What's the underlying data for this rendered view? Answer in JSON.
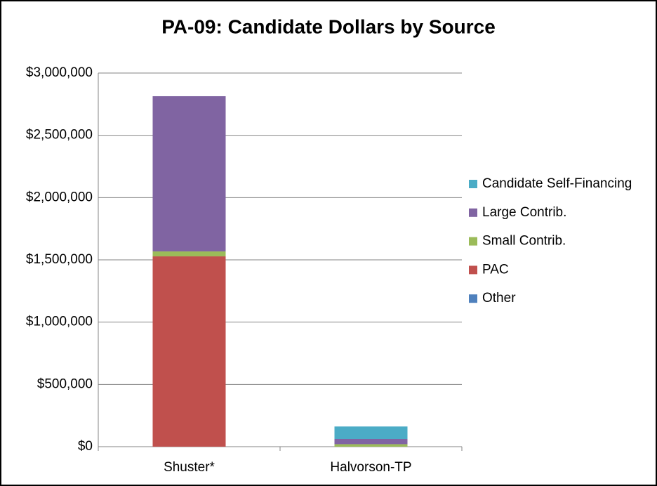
{
  "chart_data": {
    "type": "stacked_bar",
    "title": "PA-09: Candidate Dollars by Source",
    "categories": [
      "Shuster*",
      "Halvorson-TP"
    ],
    "series": [
      {
        "name": "Other",
        "color": "#4f81bd",
        "values": [
          0,
          0
        ]
      },
      {
        "name": "PAC",
        "color": "#c0504d",
        "values": [
          1528000,
          0
        ]
      },
      {
        "name": "Small Contrib.",
        "color": "#9bbb59",
        "values": [
          40000,
          20000
        ]
      },
      {
        "name": "Large Contrib.",
        "color": "#8064a2",
        "values": [
          1246000,
          42000
        ]
      },
      {
        "name": "Candidate Self-Financing",
        "color": "#4bacc6",
        "values": [
          0,
          100000
        ]
      }
    ],
    "ylim": [
      0,
      3000000
    ],
    "yticks": [
      {
        "value": 0,
        "label": "$0"
      },
      {
        "value": 500000,
        "label": "$500,000"
      },
      {
        "value": 1000000,
        "label": "$1,000,000"
      },
      {
        "value": 1500000,
        "label": "$1,500,000"
      },
      {
        "value": 2000000,
        "label": "$2,000,000"
      },
      {
        "value": 2500000,
        "label": "$2,500,000"
      },
      {
        "value": 3000000,
        "label": "$3,000,000"
      }
    ],
    "grid": true,
    "legend": "right"
  }
}
